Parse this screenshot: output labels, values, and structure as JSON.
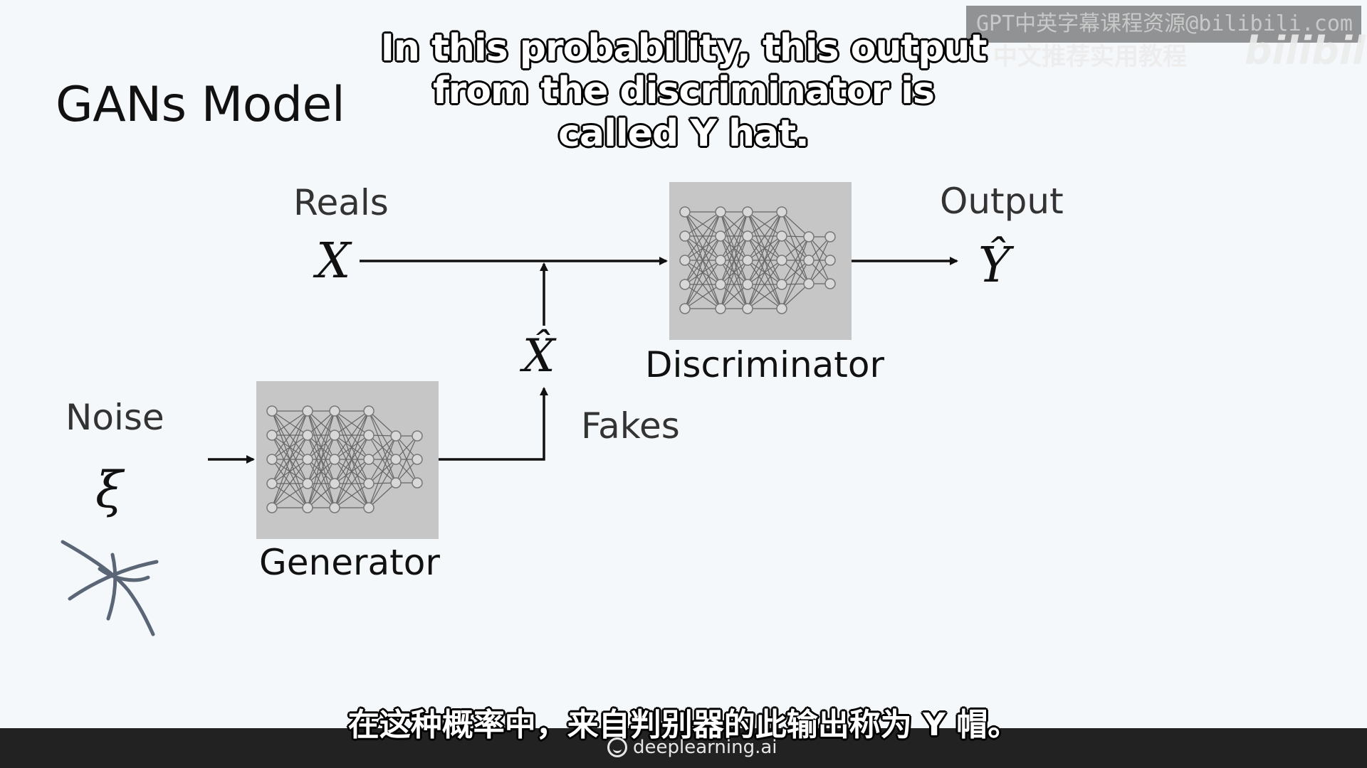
{
  "slide": {
    "title": "GANs Model",
    "labels": {
      "reals": "Reals",
      "output": "Output",
      "discriminator": "Discriminator",
      "noise": "Noise",
      "generator": "Generator",
      "fakes": "Fakes",
      "x": "X",
      "x_hat": "X̂",
      "y_hat": "Ŷ",
      "xi": "ξ"
    }
  },
  "subtitles": {
    "english": "In this probability, this output from the discriminator is called Y hat.",
    "chinese": "在这种概率中，来自判别器的此输出称为 Y 帽。"
  },
  "watermark": {
    "line1": "GPT中英字幕课程资源@bilibili.com",
    "line2": "中文推荐实用教程",
    "logo": "bilibili"
  },
  "footer": {
    "brand": "deeplearning.ai"
  },
  "colors": {
    "background": "#f5f8fb",
    "box": "#c6c6c6",
    "arrow": "#111111",
    "scribble": "#5a6576"
  }
}
